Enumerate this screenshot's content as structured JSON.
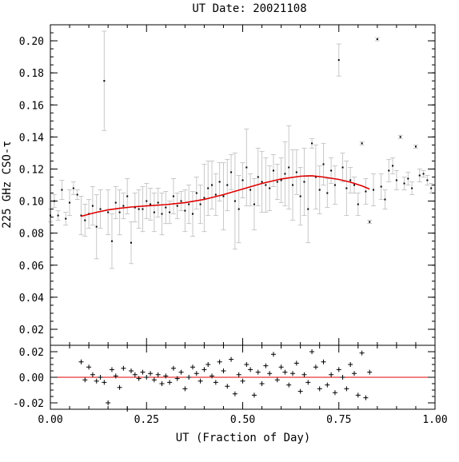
{
  "chart_data": [
    {
      "type": "scatter",
      "title": "UT Date: 20021108",
      "xlabel": "",
      "ylabel": "225 GHz CSO-τ",
      "xlim": [
        0.0,
        1.0
      ],
      "ylim": [
        0.01,
        0.21
      ],
      "y_tick_labels": [
        "0.02",
        "0.04",
        "0.06",
        "0.08",
        "0.10",
        "0.12",
        "0.14",
        "0.16",
        "0.18",
        "0.20"
      ],
      "y_tick_values": [
        0.02,
        0.04,
        0.06,
        0.08,
        0.1,
        0.12,
        0.14,
        0.16,
        0.18,
        0.2
      ],
      "grid": false,
      "series": [
        {
          "style": "points-with-errorbars",
          "color": "#000000",
          "errorbar_color": "#c8c8c8",
          "x": [
            0.0,
            0.01,
            0.02,
            0.03,
            0.04,
            0.05,
            0.06,
            0.07,
            0.08,
            0.09,
            0.1,
            0.11,
            0.12,
            0.13,
            0.14,
            0.15,
            0.16,
            0.17,
            0.18,
            0.19,
            0.2,
            0.21,
            0.22,
            0.23,
            0.24,
            0.25,
            0.26,
            0.27,
            0.28,
            0.29,
            0.3,
            0.31,
            0.32,
            0.33,
            0.34,
            0.35,
            0.36,
            0.37,
            0.38,
            0.39,
            0.4,
            0.41,
            0.42,
            0.43,
            0.44,
            0.45,
            0.46,
            0.47,
            0.48,
            0.49,
            0.5,
            0.51,
            0.52,
            0.53,
            0.54,
            0.55,
            0.56,
            0.57,
            0.58,
            0.59,
            0.6,
            0.61,
            0.62,
            0.63,
            0.64,
            0.65,
            0.66,
            0.67,
            0.68,
            0.69,
            0.7,
            0.71,
            0.72,
            0.73,
            0.74,
            0.75,
            0.76,
            0.77,
            0.78,
            0.79,
            0.8,
            0.81,
            0.82,
            0.83,
            0.84,
            0.85,
            0.86,
            0.87,
            0.88,
            0.89,
            0.9,
            0.91,
            0.92,
            0.93,
            0.94,
            0.95,
            0.96,
            0.97,
            0.98,
            0.99
          ],
          "y": [
            0.091,
            0.1,
            0.091,
            0.107,
            0.089,
            0.099,
            0.108,
            0.104,
            0.091,
            0.088,
            0.092,
            0.097,
            0.084,
            0.095,
            0.175,
            0.093,
            0.075,
            0.099,
            0.093,
            0.097,
            0.103,
            0.074,
            0.096,
            0.095,
            0.095,
            0.1,
            0.098,
            0.093,
            0.099,
            0.092,
            0.096,
            0.093,
            0.103,
            0.097,
            0.1,
            0.094,
            0.098,
            0.092,
            0.105,
            0.098,
            0.102,
            0.108,
            0.11,
            0.104,
            0.112,
            0.103,
            0.11,
            0.118,
            0.1,
            0.095,
            0.113,
            0.121,
            0.107,
            0.098,
            0.115,
            0.112,
            0.11,
            0.108,
            0.119,
            0.112,
            0.113,
            0.117,
            0.121,
            0.11,
            0.118,
            0.103,
            0.112,
            0.095,
            0.136,
            0.115,
            0.107,
            0.123,
            0.105,
            0.119,
            0.11,
            0.188,
            0.121,
            0.108,
            0.113,
            0.11,
            0.098,
            0.136,
            0.106,
            0.087,
            0.107,
            0.201,
            0.109,
            0.101,
            0.119,
            0.122,
            0.113,
            0.14,
            0.111,
            0.114,
            0.108,
            0.134,
            0.116,
            0.117,
            0.113,
            0.108
          ],
          "yerr": [
            0.004,
            0.004,
            0.003,
            0.006,
            0.004,
            0.008,
            0.004,
            0.003,
            0.012,
            0.01,
            0.009,
            0.012,
            0.02,
            0.012,
            0.031,
            0.014,
            0.017,
            0.01,
            0.014,
            0.008,
            0.011,
            0.013,
            0.009,
            0.012,
            0.014,
            0.011,
            0.01,
            0.012,
            0.009,
            0.013,
            0.01,
            0.007,
            0.011,
            0.008,
            0.006,
            0.013,
            0.012,
            0.014,
            0.01,
            0.012,
            0.021,
            0.017,
            0.015,
            0.013,
            0.012,
            0.021,
            0.016,
            0.011,
            0.03,
            0.021,
            0.011,
            0.024,
            0.01,
            0.016,
            0.018,
            0.019,
            0.017,
            0.014,
            0.01,
            0.011,
            0.014,
            0.02,
            0.026,
            0.022,
            0.014,
            0.018,
            0.021,
            0.021,
            0.003,
            0.02,
            0.015,
            0.013,
            0.009,
            0.008,
            0.012,
            0.01,
            0.009,
            0.017,
            0.008,
            0.005,
            0.007,
            0.001,
            0.008,
            0.001,
            0.01,
            0.001,
            0.008,
            0.006,
            0.007,
            0.005,
            0.006,
            0.001,
            0.004,
            0.004,
            0.004,
            0.001,
            0.004,
            0.002,
            0.003,
            0.003
          ]
        },
        {
          "style": "fit-line",
          "color": "#e00000",
          "x": [
            0.08,
            0.1,
            0.12,
            0.15,
            0.18,
            0.21,
            0.25,
            0.3,
            0.35,
            0.4,
            0.45,
            0.5,
            0.55,
            0.6,
            0.65,
            0.68,
            0.71,
            0.75,
            0.78,
            0.81,
            0.83
          ],
          "y": [
            0.0905,
            0.0918,
            0.093,
            0.0945,
            0.0955,
            0.0963,
            0.097,
            0.0978,
            0.099,
            0.101,
            0.104,
            0.1075,
            0.111,
            0.1138,
            0.1155,
            0.1158,
            0.115,
            0.1135,
            0.1118,
            0.1095,
            0.1075
          ]
        }
      ]
    },
    {
      "type": "scatter",
      "title": "",
      "xlabel": "UT (Fraction of Day)",
      "ylabel": "",
      "xlim": [
        0.0,
        1.0
      ],
      "ylim": [
        -0.025,
        0.025
      ],
      "x_tick_labels": [
        "0.00",
        "0.25",
        "0.50",
        "0.75",
        "1.00"
      ],
      "x_tick_values": [
        0.0,
        0.25,
        0.5,
        0.75,
        1.0
      ],
      "y_tick_labels": [
        "-0.02",
        "0.00",
        "0.02"
      ],
      "y_tick_values": [
        -0.02,
        0.0,
        0.02
      ],
      "grid": false,
      "reference_line": {
        "y": 0.0,
        "color": "#e00000"
      },
      "series": [
        {
          "style": "plus-markers",
          "color": "#000000",
          "x": [
            0.08,
            0.09,
            0.1,
            0.11,
            0.12,
            0.13,
            0.14,
            0.15,
            0.16,
            0.17,
            0.18,
            0.19,
            0.2,
            0.21,
            0.22,
            0.23,
            0.24,
            0.25,
            0.26,
            0.27,
            0.28,
            0.29,
            0.3,
            0.31,
            0.32,
            0.33,
            0.34,
            0.35,
            0.36,
            0.37,
            0.38,
            0.39,
            0.4,
            0.41,
            0.42,
            0.43,
            0.44,
            0.45,
            0.46,
            0.47,
            0.48,
            0.49,
            0.5,
            0.51,
            0.52,
            0.53,
            0.54,
            0.55,
            0.56,
            0.57,
            0.58,
            0.59,
            0.6,
            0.61,
            0.62,
            0.63,
            0.64,
            0.65,
            0.66,
            0.67,
            0.68,
            0.69,
            0.7,
            0.71,
            0.72,
            0.73,
            0.74,
            0.75,
            0.76,
            0.77,
            0.78,
            0.79,
            0.8,
            0.81,
            0.82,
            0.83
          ],
          "y": [
            0.012,
            -0.002,
            0.008,
            0.002,
            -0.003,
            0.0,
            -0.004,
            -0.02,
            0.006,
            0.001,
            -0.008,
            0.007,
            -0.025,
            0.005,
            0.002,
            -0.001,
            0.004,
            0.0,
            0.003,
            -0.002,
            0.002,
            -0.005,
            0.001,
            -0.004,
            0.007,
            -0.001,
            0.004,
            -0.009,
            0.0,
            0.008,
            0.003,
            -0.003,
            0.006,
            0.01,
            0.001,
            -0.004,
            0.012,
            0.005,
            -0.007,
            0.014,
            -0.013,
            0.002,
            -0.003,
            0.01,
            0.006,
            -0.014,
            0.004,
            -0.005,
            0.009,
            0.003,
            0.018,
            -0.002,
            0.008,
            0.004,
            -0.006,
            0.003,
            0.011,
            -0.011,
            0.002,
            -0.004,
            0.02,
            0.008,
            -0.009,
            0.012,
            -0.006,
            0.002,
            -0.012,
            0.006,
            0.0,
            -0.009,
            0.01,
            0.003,
            -0.014,
            0.019,
            -0.016,
            0.004
          ]
        }
      ]
    }
  ]
}
